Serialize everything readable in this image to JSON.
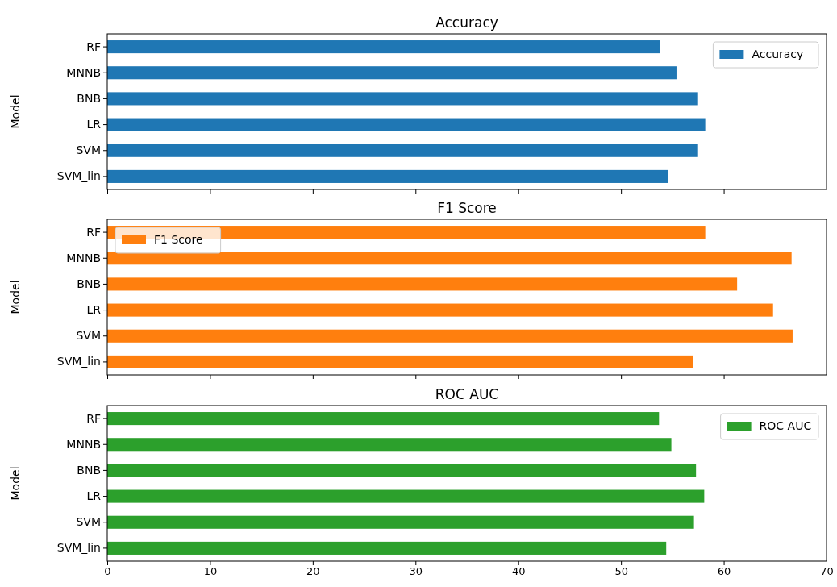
{
  "chart_data": [
    {
      "type": "bar",
      "orientation": "horizontal",
      "title": "Accuracy",
      "ylabel": "Model",
      "categories": [
        "RF",
        "MNNB",
        "BNB",
        "LR",
        "SVM",
        "SVM_lin"
      ],
      "series": [
        {
          "name": "Accuracy",
          "color": "#1f77b4",
          "values": [
            53.8,
            55.4,
            57.5,
            58.2,
            57.5,
            54.6
          ]
        }
      ],
      "xlim": [
        0,
        70
      ],
      "xticks": [
        0,
        10,
        20,
        30,
        40,
        50,
        60,
        70
      ],
      "tick_labels": "y",
      "legend": "top right"
    },
    {
      "type": "bar",
      "orientation": "horizontal",
      "title": "F1 Score",
      "ylabel": "Model",
      "categories": [
        "RF",
        "MNNB",
        "BNB",
        "LR",
        "SVM",
        "SVM_lin"
      ],
      "series": [
        {
          "name": "F1 Score",
          "color": "#ff7f0e",
          "values": [
            58.2,
            66.6,
            61.3,
            64.8,
            66.7,
            57.0
          ]
        }
      ],
      "xlim": [
        0,
        70
      ],
      "xticks": [
        0,
        10,
        20,
        30,
        40,
        50,
        60,
        70
      ],
      "tick_labels": "y",
      "legend": "top left"
    },
    {
      "type": "bar",
      "orientation": "horizontal",
      "title": "ROC AUC",
      "ylabel": "Model",
      "categories": [
        "RF",
        "MNNB",
        "BNB",
        "LR",
        "SVM",
        "SVM_lin"
      ],
      "series": [
        {
          "name": "ROC AUC",
          "color": "#2ca02c",
          "values": [
            53.7,
            54.9,
            57.3,
            58.1,
            57.1,
            54.4
          ]
        }
      ],
      "xlim": [
        0,
        70
      ],
      "xticks": [
        0,
        10,
        20,
        30,
        40,
        50,
        60,
        70
      ],
      "legend": "top right"
    }
  ]
}
